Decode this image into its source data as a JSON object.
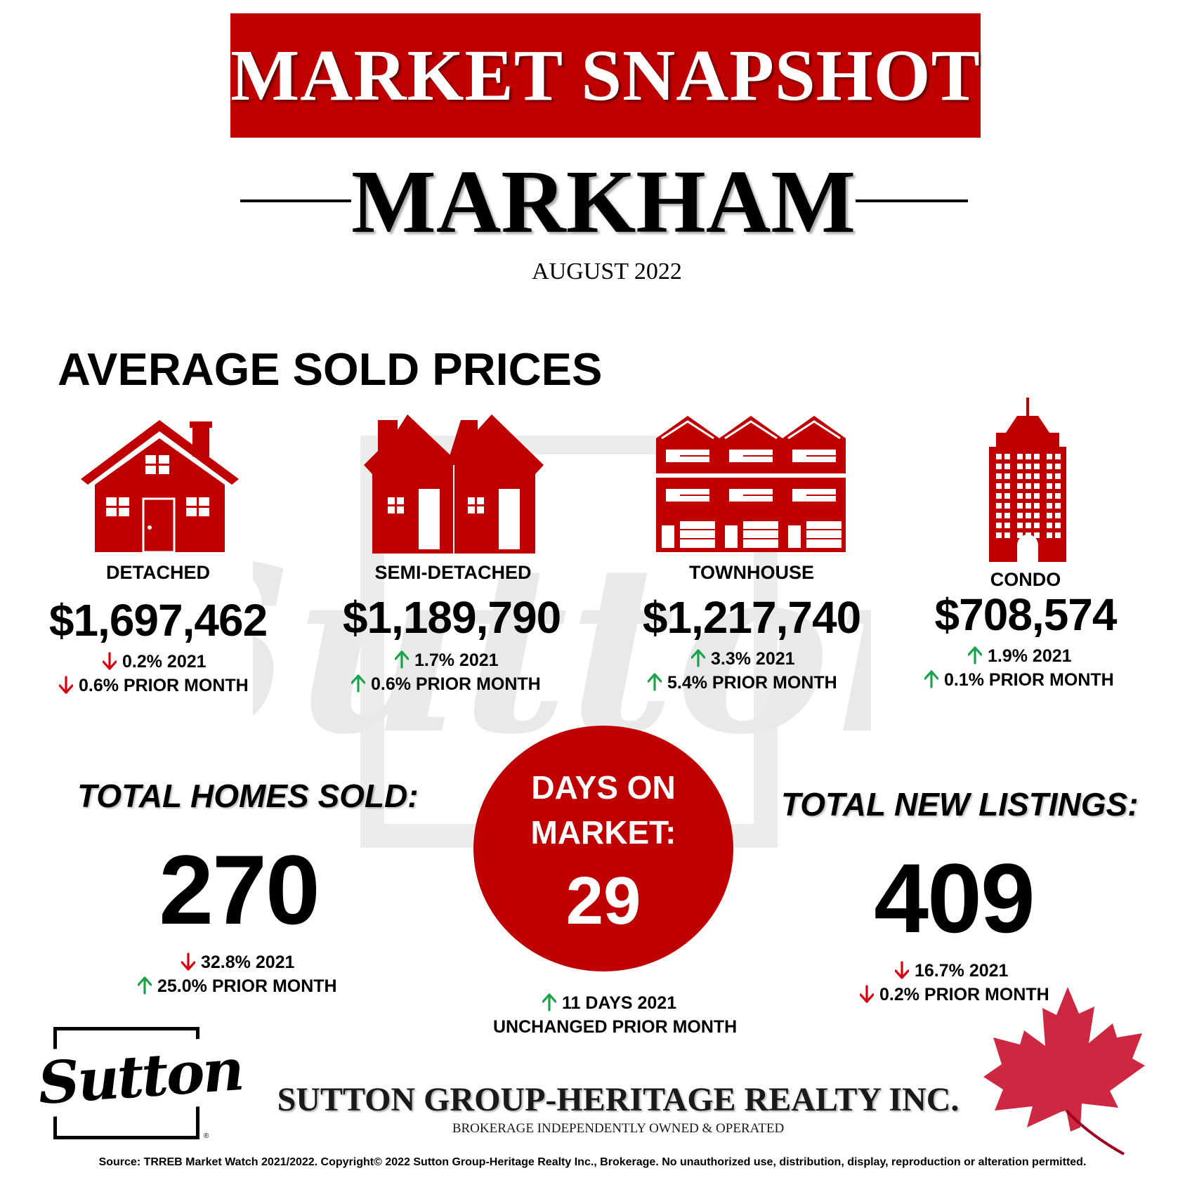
{
  "header": {
    "title": "MARKET SNAPSHOT",
    "city": "MARKHAM",
    "month": "AUGUST 2022"
  },
  "section_heading": "AVERAGE SOLD PRICES",
  "colors": {
    "brand_red": "#c00000",
    "up_green": "#1aa34a",
    "down_red": "#d9000d"
  },
  "property_types": [
    {
      "label": "DETACHED",
      "icon": "detached-house-icon",
      "price": "$1,697,462",
      "change_year": {
        "direction": "down",
        "text": "0.2% 2021"
      },
      "change_month": {
        "direction": "down",
        "text": "0.6% PRIOR MONTH"
      }
    },
    {
      "label": "SEMI-DETACHED",
      "icon": "semi-detached-house-icon",
      "price": "$1,189,790",
      "change_year": {
        "direction": "up",
        "text": "1.7% 2021"
      },
      "change_month": {
        "direction": "up",
        "text": "0.6% PRIOR MONTH"
      }
    },
    {
      "label": "TOWNHOUSE",
      "icon": "townhouse-icon",
      "price": "$1,217,740",
      "change_year": {
        "direction": "up",
        "text": "3.3% 2021"
      },
      "change_month": {
        "direction": "up",
        "text": "5.4% PRIOR MONTH"
      }
    },
    {
      "label": "CONDO",
      "icon": "condo-tower-icon",
      "price": "$708,574",
      "change_year": {
        "direction": "up",
        "text": "1.9% 2021"
      },
      "change_month": {
        "direction": "up",
        "text": "0.1% PRIOR MONTH"
      }
    }
  ],
  "homes_sold": {
    "label": "TOTAL HOMES SOLD:",
    "value": "270",
    "change_year": {
      "direction": "down",
      "text": "32.8% 2021"
    },
    "change_month": {
      "direction": "up",
      "text": "25.0% PRIOR MONTH"
    }
  },
  "days_on_market": {
    "label_line1": "DAYS ON",
    "label_line2": "MARKET:",
    "value": "29",
    "change_year": {
      "direction": "up",
      "text": "11 DAYS 2021"
    },
    "change_month": {
      "text": "UNCHANGED PRIOR MONTH"
    }
  },
  "new_listings": {
    "label": "TOTAL NEW LISTINGS:",
    "value": "409",
    "change_year": {
      "direction": "down",
      "text": "16.7% 2021"
    },
    "change_month": {
      "direction": "down",
      "text": "0.2% PRIOR MONTH"
    }
  },
  "footer": {
    "logo_text": "Sutton",
    "logo_reg": "®",
    "company": "SUTTON GROUP-HERITAGE REALTY INC.",
    "tagline": "BROKERAGE INDEPENDENTLY OWNED & OPERATED",
    "source": "Source: TRREB Market Watch 2021/2022. Copyright© 2022 Sutton Group-Heritage Realty Inc., Brokerage. No unauthorized use, distribution, display, reproduction or alteration permitted.",
    "icons": [
      "sutton-logo-icon",
      "maple-leaf-icon"
    ]
  }
}
